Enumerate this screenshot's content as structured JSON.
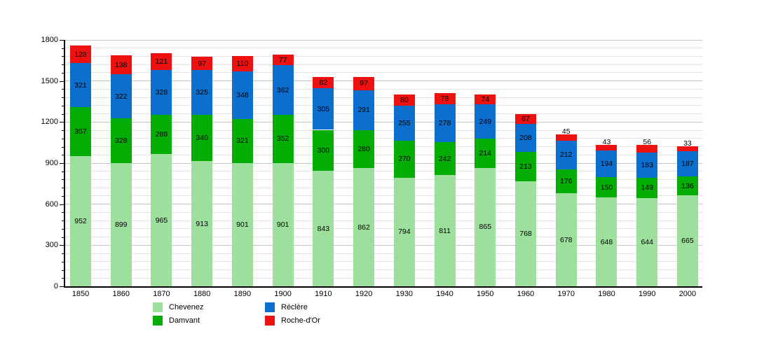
{
  "chart_data": {
    "type": "bar",
    "stacked": true,
    "title": "",
    "xlabel": "",
    "ylabel": "",
    "categories": [
      "1850",
      "1860",
      "1870",
      "1880",
      "1890",
      "1900",
      "1910",
      "1920",
      "1930",
      "1940",
      "1950",
      "1960",
      "1970",
      "1980",
      "1990",
      "2000"
    ],
    "series": [
      {
        "name": "Chevenez",
        "color": "#9de09d",
        "values": [
          952,
          899,
          965,
          913,
          901,
          901,
          843,
          862,
          794,
          811,
          865,
          768,
          678,
          648,
          644,
          665
        ]
      },
      {
        "name": "Damvant",
        "color": "#04ad04",
        "values": [
          357,
          328,
          288,
          340,
          321,
          352,
          300,
          280,
          270,
          242,
          214,
          213,
          176,
          150,
          149,
          136
        ]
      },
      {
        "name": "Réclère",
        "color": "#0c6fce",
        "values": [
          321,
          322,
          328,
          325,
          348,
          362,
          305,
          291,
          255,
          278,
          249,
          208,
          212,
          194,
          183,
          187
        ]
      },
      {
        "name": "Roche-d'Or",
        "color": "#ee1111",
        "values": [
          128,
          138,
          121,
          97,
          110,
          77,
          82,
          97,
          80,
          78,
          74,
          67,
          45,
          43,
          56,
          33
        ]
      }
    ],
    "ylim": [
      0,
      1800
    ],
    "ytick_interval": 300,
    "yminor_interval": 60,
    "grid": true,
    "bar_labels": true,
    "legend_position": "bottom",
    "legend_order": [
      "Chevenez",
      "Réclère",
      "Damvant",
      "Roche-d'Or"
    ],
    "colors": {
      "axis": "#000000",
      "grid_major": "#c4c4c4",
      "grid_minor": "#e2e2e2",
      "background": "#ffffff",
      "label_text": "#000000"
    }
  }
}
